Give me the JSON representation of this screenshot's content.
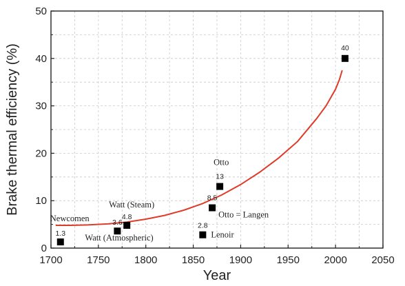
{
  "chart_data": {
    "type": "scatter",
    "title": "",
    "xlabel": "Year",
    "ylabel": "Brake thermal efficiency (%)",
    "xlim": [
      1700,
      2050
    ],
    "ylim": [
      0,
      50
    ],
    "xticks": [
      1700,
      1750,
      1800,
      1850,
      1900,
      1950,
      2000,
      2050
    ],
    "yticks": [
      0,
      10,
      20,
      30,
      40,
      50
    ],
    "xtick_labels": [
      "1700",
      "1750",
      "1800",
      "1850",
      "1900",
      "1950",
      "2000",
      "2050"
    ],
    "ytick_labels": [
      "0",
      "10",
      "20",
      "30",
      "40",
      "50"
    ],
    "grid": true,
    "marker_color": "#000000",
    "trend_color": "#e03a28",
    "points": [
      {
        "x": 1710,
        "y": 1.3,
        "value_label": "1.3",
        "name": "Newcomen"
      },
      {
        "x": 1770,
        "y": 3.6,
        "value_label": "3.6",
        "name": "Watt (Atmospheric)"
      },
      {
        "x": 1780,
        "y": 4.8,
        "value_label": "4.8",
        "name": "Watt (Steam)"
      },
      {
        "x": 1860,
        "y": 2.8,
        "value_label": "2.8",
        "name": "Lenoir"
      },
      {
        "x": 1870,
        "y": 8.5,
        "value_label": "8.5",
        "name": "Otto = Langen"
      },
      {
        "x": 1878,
        "y": 13,
        "value_label": "13",
        "name": "Otto"
      },
      {
        "x": 2010,
        "y": 40,
        "value_label": "40",
        "name": ""
      }
    ],
    "trend_curve": {
      "x": [
        1705,
        1720,
        1740,
        1760,
        1780,
        1800,
        1820,
        1840,
        1860,
        1880,
        1900,
        1920,
        1940,
        1960,
        1980,
        1990,
        2000,
        2004,
        2007
      ],
      "y": [
        4.8,
        4.8,
        4.9,
        5.1,
        5.5,
        6.1,
        6.9,
        8.0,
        9.4,
        11.2,
        13.4,
        16.0,
        19.0,
        22.5,
        27.3,
        30.0,
        33.5,
        35.5,
        37.5
      ]
    }
  }
}
